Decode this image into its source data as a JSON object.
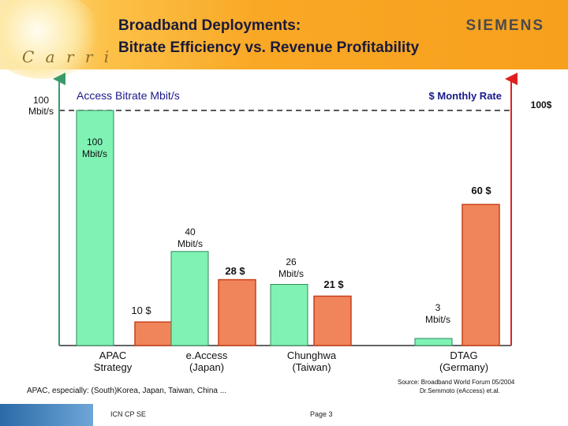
{
  "header": {
    "title_line1": "Broadband Deployments:",
    "title_line2": "Bitrate Efficiency vs. Revenue Profitability",
    "brand": "SIEMENS",
    "logo_text": "C a r r i"
  },
  "chart_data": {
    "type": "bar",
    "categories": [
      "APAC\nStrategy",
      "e.Access\n(Japan)",
      "Chunghwa\n(Taiwan)",
      "DTAG\n(Germany)"
    ],
    "left_axis_label": "Access Bitrate Mbit/s",
    "right_axis_label": "$ Monthly Rate",
    "left_axis_max_label": "100\nMbit/s",
    "right_axis_max_label": "100$",
    "series": [
      {
        "axis": "left",
        "color": "#7ff2b4",
        "values": [
          100,
          40,
          26,
          3
        ],
        "labels": [
          "100\nMbit/s",
          "40\nMbit/s",
          "26\nMbit/s",
          "3\nMbit/s"
        ]
      },
      {
        "axis": "right",
        "color": "#f0845a",
        "values": [
          10,
          28,
          21,
          60
        ],
        "labels": [
          "10 $",
          "28 $",
          "21 $",
          "60 $"
        ]
      }
    ],
    "ylim": [
      0,
      100
    ]
  },
  "notes": {
    "regions": "APAC, especially: (South)Korea, Japan, Taiwan, China ...",
    "source_line1": "Source: Broadband World Forum 05/2004",
    "source_line2": "Dr.Semmoto (eAccess) et.al."
  },
  "footer": {
    "left": "ICN CP SE",
    "page": "Page 3"
  },
  "colors": {
    "left_axis": "#3a9a6a",
    "right_axis": "#e02020"
  }
}
